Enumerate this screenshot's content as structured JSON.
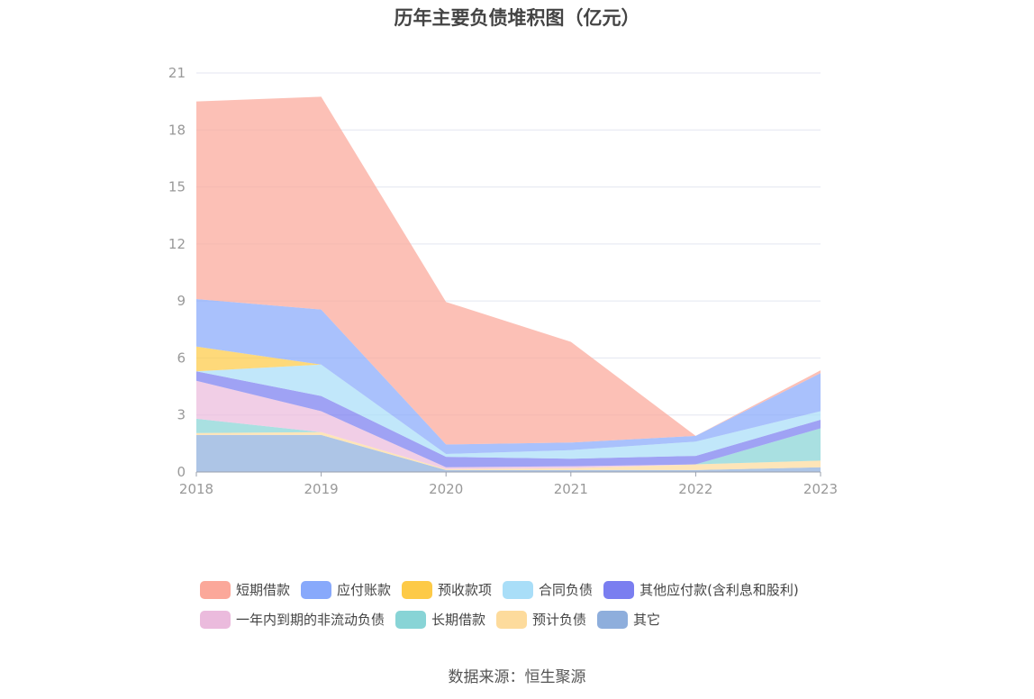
{
  "chart_data": {
    "type": "area",
    "stacked": true,
    "title": "历年主要负债堆积图（亿元）",
    "xlabel": "",
    "ylabel": "",
    "x": [
      "2018",
      "2019",
      "2020",
      "2021",
      "2022",
      "2023"
    ],
    "ylim": [
      0,
      21
    ],
    "yticks": [
      "0",
      "3",
      "6",
      "9",
      "12",
      "15",
      "18",
      "21"
    ],
    "grid": true,
    "legend_position": "bottom",
    "series": [
      {
        "name": "其它",
        "color": "#8eaedc",
        "values": [
          1.95,
          1.95,
          0.1,
          0.1,
          0.1,
          0.25
        ]
      },
      {
        "name": "预计负债",
        "color": "#fddb9c",
        "values": [
          0.1,
          0.15,
          0.05,
          0.1,
          0.3,
          0.35
        ]
      },
      {
        "name": "长期借款",
        "color": "#88d4d6",
        "values": [
          0.75,
          0.0,
          0.0,
          0.0,
          0.0,
          1.7
        ]
      },
      {
        "name": "一年内到期的非流动负债",
        "color": "#ebbbdd",
        "values": [
          2.0,
          1.1,
          0.1,
          0.1,
          0.0,
          0.0
        ]
      },
      {
        "name": "其他应付款(含利息和股利)",
        "color": "#7a7ef0",
        "values": [
          0.5,
          0.8,
          0.55,
          0.4,
          0.45,
          0.45
        ]
      },
      {
        "name": "合同负债",
        "color": "#a9def8",
        "values": [
          0.0,
          1.65,
          0.15,
          0.45,
          0.75,
          0.45
        ]
      },
      {
        "name": "预收款项",
        "color": "#fdca47",
        "values": [
          1.3,
          0.0,
          0.0,
          0.0,
          0.0,
          0.0
        ]
      },
      {
        "name": "应付账款",
        "color": "#88a9fb",
        "values": [
          2.5,
          2.9,
          0.5,
          0.4,
          0.3,
          2.0
        ]
      },
      {
        "name": "短期借款",
        "color": "#fba89a",
        "values": [
          10.4,
          11.2,
          7.5,
          5.3,
          0.0,
          0.15
        ]
      }
    ]
  },
  "legend": {
    "row1": [
      {
        "label": "短期借款",
        "color": "#fba89a"
      },
      {
        "label": "应付账款",
        "color": "#88a9fb"
      },
      {
        "label": "预收款项",
        "color": "#fdca47"
      },
      {
        "label": "合同负债",
        "color": "#a9def8"
      },
      {
        "label": "其他应付款(含利息和股利)",
        "color": "#7a7ef0"
      }
    ],
    "row2": [
      {
        "label": "一年内到期的非流动负债",
        "color": "#ebbbdd"
      },
      {
        "label": "长期借款",
        "color": "#88d4d6"
      },
      {
        "label": "预计负债",
        "color": "#fddb9c"
      },
      {
        "label": "其它",
        "color": "#8eaedc"
      }
    ]
  },
  "source": "数据来源：恒生聚源"
}
